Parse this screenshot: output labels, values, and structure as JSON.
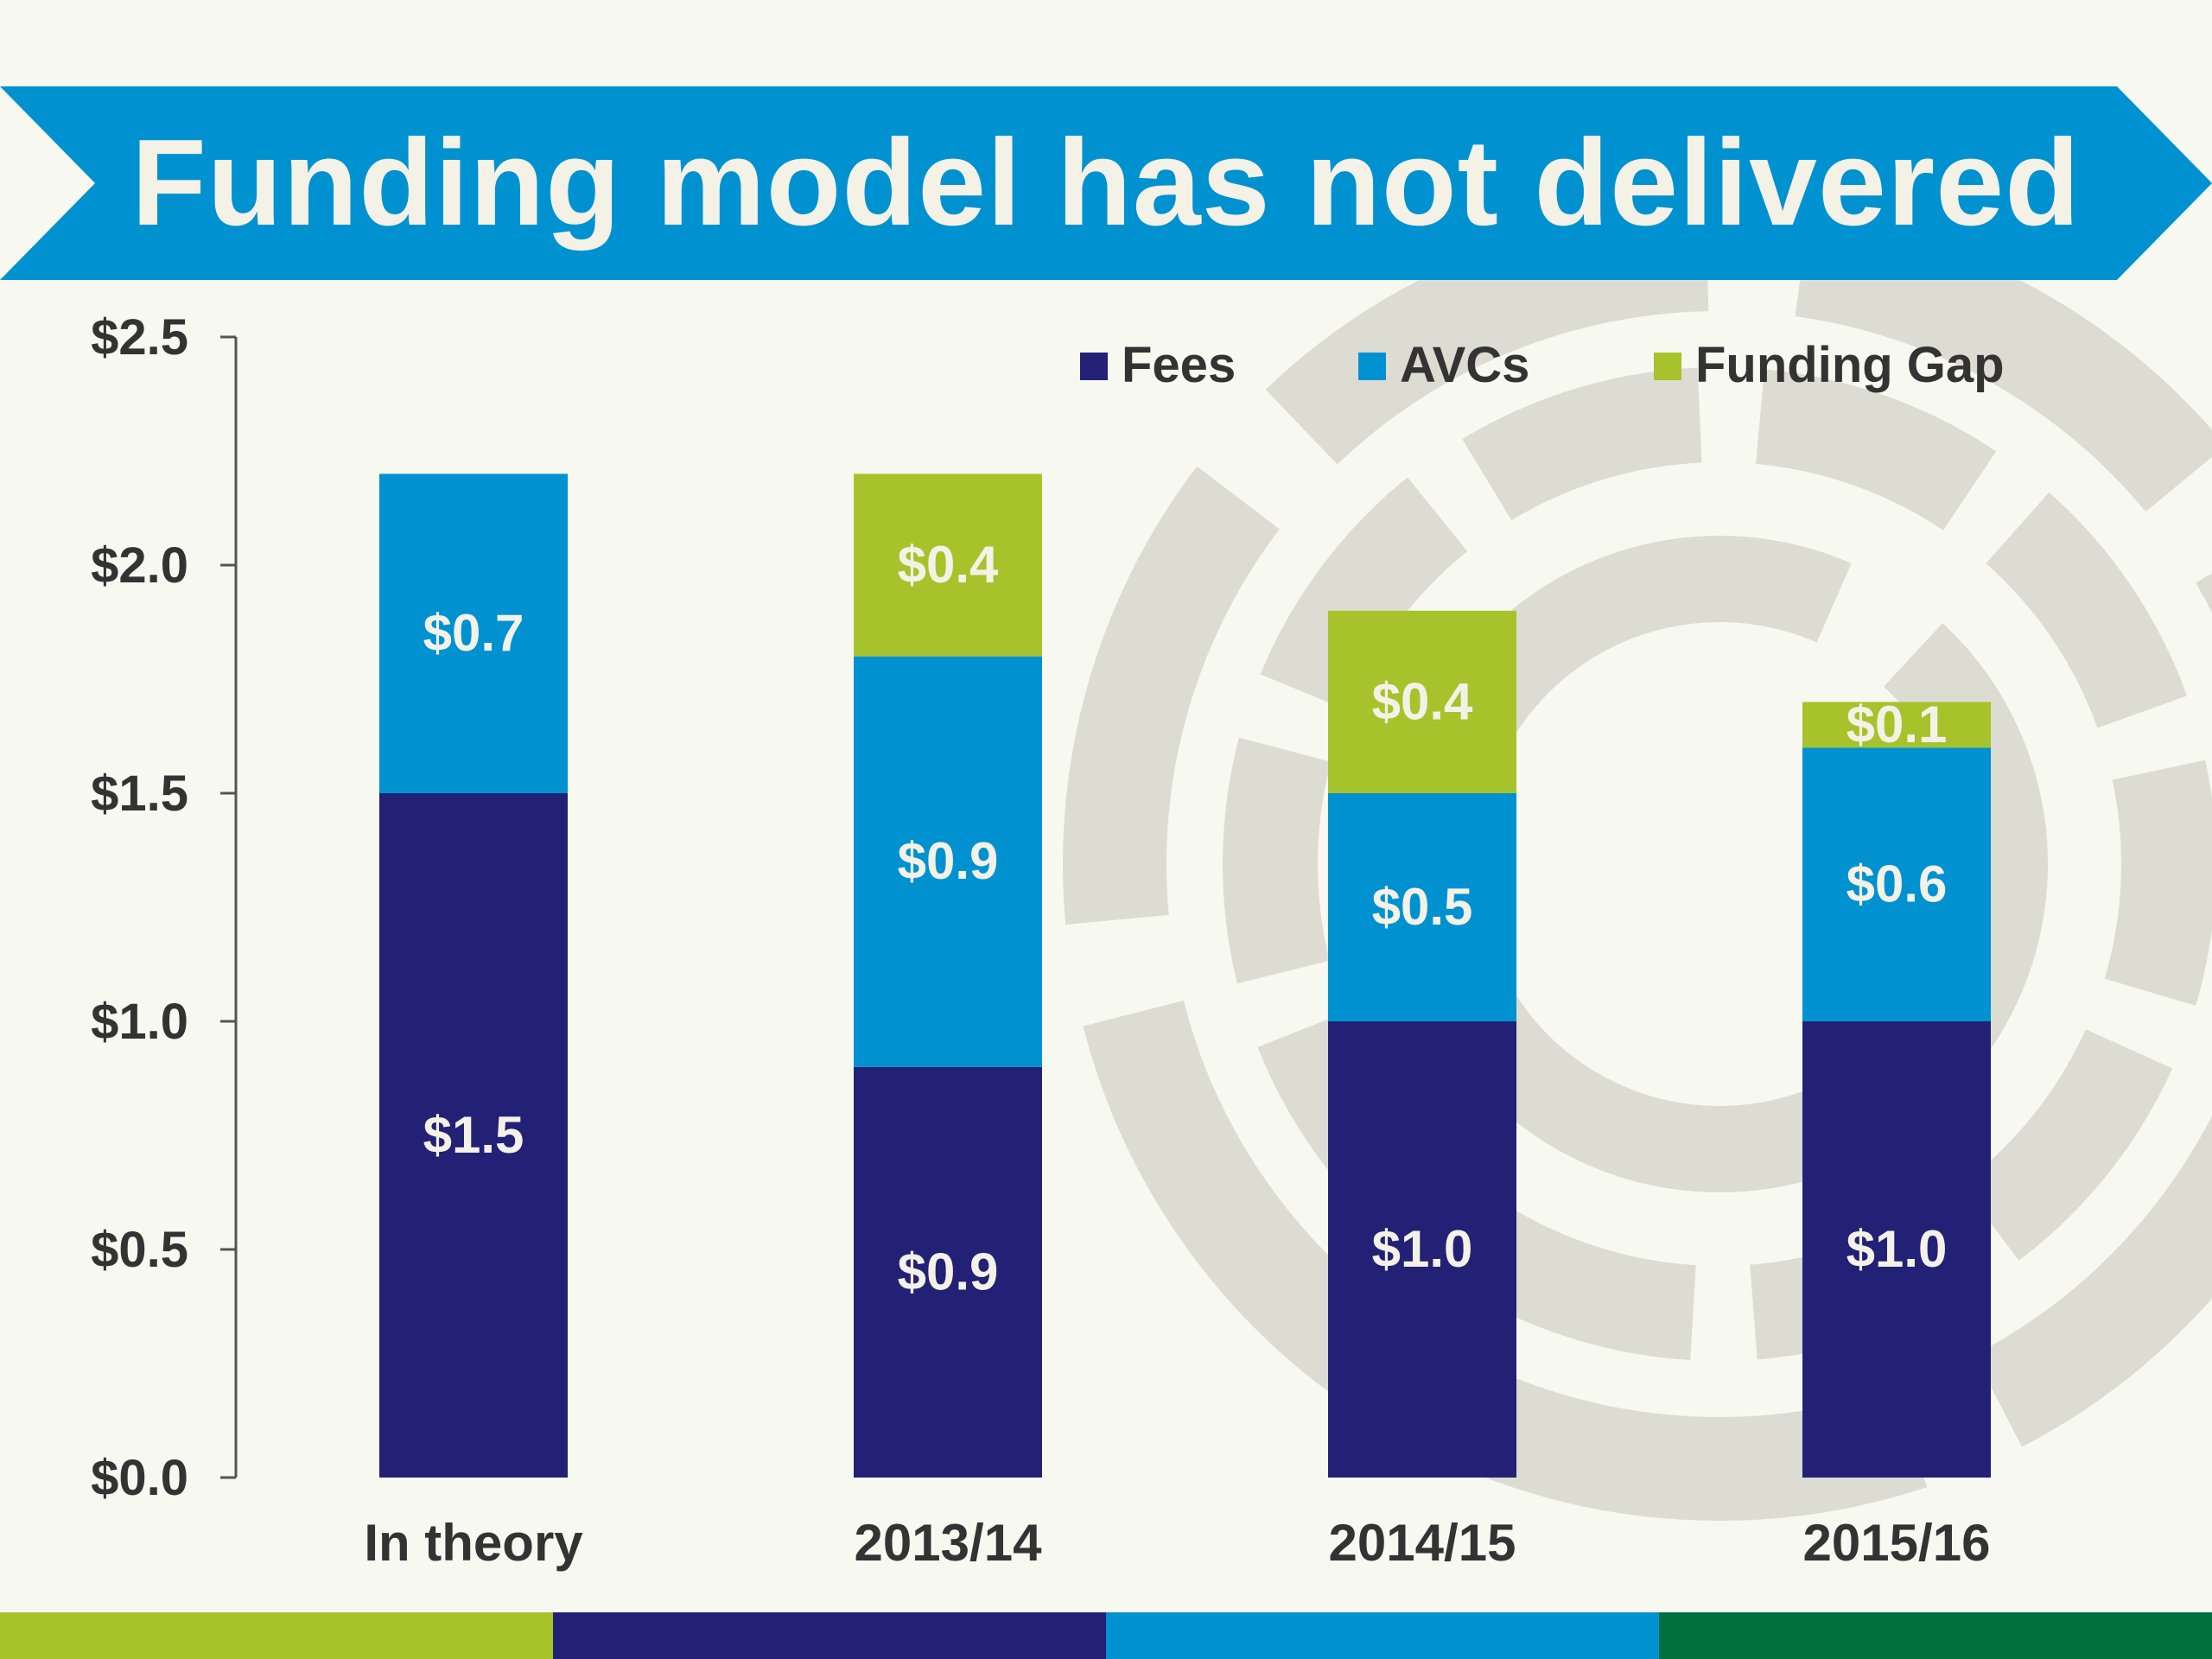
{
  "slide": {
    "title": "Funding model has not delivered"
  },
  "colors": {
    "banner": "#0092d0",
    "fees": "#232176",
    "avcs": "#0092d0",
    "funding_gap": "#a8c22c",
    "bar_label": "#f4f1e6",
    "axis_text": "#333333",
    "watermark": "#dcdcd2",
    "stripe": [
      "#a8c22c",
      "#232176",
      "#0092d0",
      "#006f3c"
    ]
  },
  "chart_data": {
    "type": "bar",
    "stacked": true,
    "categories": [
      "In theory",
      "2013/14",
      "2014/15",
      "2015/16"
    ],
    "series": [
      {
        "name": "Fees",
        "values": [
          1.5,
          0.9,
          1.0,
          1.0
        ],
        "labels": [
          "$1.5",
          "$0.9",
          "$1.0",
          "$1.0"
        ]
      },
      {
        "name": "AVCs",
        "values": [
          0.7,
          0.9,
          0.5,
          0.6
        ],
        "labels": [
          "$0.7",
          "$0.9",
          "$0.5",
          "$0.6"
        ]
      },
      {
        "name": "Funding Gap",
        "values": [
          0,
          0.4,
          0.4,
          0.1
        ],
        "labels": [
          "",
          "$0.4",
          "$0.4",
          "$0.1"
        ]
      }
    ],
    "y_ticks": [
      0,
      0.5,
      1.0,
      1.5,
      2.0,
      2.5
    ],
    "y_tick_labels": [
      "$0.0",
      "$0.5",
      "$1.0",
      "$1.5",
      "$2.0",
      "$2.5"
    ],
    "ylim": [
      0,
      2.5
    ],
    "legend_position": "top-right",
    "grid": false
  }
}
